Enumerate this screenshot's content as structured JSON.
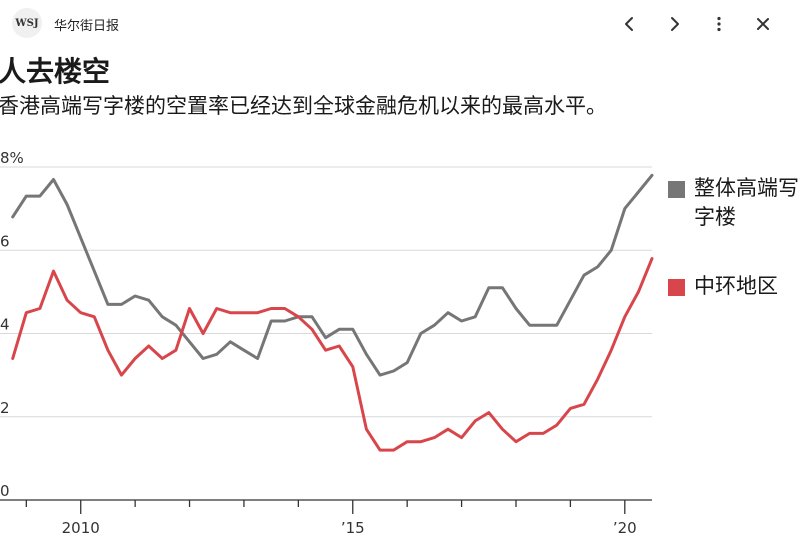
{
  "app": {
    "logo_text": "WSJ",
    "title": "华尔街日报"
  },
  "toolbar_icons": [
    "chevron-left-icon",
    "chevron-right-icon",
    "more-vertical-icon",
    "close-icon"
  ],
  "headline": "人去楼空",
  "subhead": "香港高端写字楼的空置率已经达到全球金融危机以来的最高水平。",
  "chart_data": {
    "type": "line",
    "y_ticks": [
      {
        "value": 0,
        "label": "0"
      },
      {
        "value": 2,
        "label": "2"
      },
      {
        "value": 4,
        "label": "4"
      },
      {
        "value": 6,
        "label": "6"
      },
      {
        "value": 8,
        "label": "8%"
      }
    ],
    "x_ticks": [
      {
        "value": 2010,
        "label": "2010"
      },
      {
        "value": 2015,
        "label": "’15"
      },
      {
        "value": 2020,
        "label": "’20"
      }
    ],
    "xlim": [
      2008.7,
      2020.5
    ],
    "ylim": [
      0,
      8
    ],
    "grid": true,
    "legend_placement": "right",
    "x": [
      2008.75,
      2009.0,
      2009.25,
      2009.5,
      2009.75,
      2010.0,
      2010.25,
      2010.5,
      2010.75,
      2011.0,
      2011.25,
      2011.5,
      2011.75,
      2012.0,
      2012.25,
      2012.5,
      2012.75,
      2013.0,
      2013.25,
      2013.5,
      2013.75,
      2014.0,
      2014.25,
      2014.5,
      2014.75,
      2015.0,
      2015.25,
      2015.5,
      2015.75,
      2016.0,
      2016.25,
      2016.5,
      2016.75,
      2017.0,
      2017.25,
      2017.5,
      2017.75,
      2018.0,
      2018.25,
      2018.5,
      2018.75,
      2019.0,
      2019.25,
      2019.5,
      2019.75,
      2020.0,
      2020.25,
      2020.5
    ],
    "series": [
      {
        "name": "整体高端写字楼",
        "color": "#767676",
        "values": [
          6.8,
          7.3,
          7.3,
          7.7,
          7.1,
          6.3,
          5.5,
          4.7,
          4.7,
          4.9,
          4.8,
          4.4,
          4.2,
          3.8,
          3.4,
          3.5,
          3.8,
          3.6,
          3.4,
          4.3,
          4.3,
          4.4,
          4.4,
          3.9,
          4.1,
          4.1,
          3.5,
          3.0,
          3.1,
          3.3,
          4.0,
          4.2,
          4.5,
          4.3,
          4.4,
          5.1,
          5.1,
          4.6,
          4.2,
          4.2,
          4.2,
          4.8,
          5.4,
          5.6,
          6.0,
          7.0,
          7.4,
          7.8
        ]
      },
      {
        "name": "中环地区",
        "color": "#d8464c",
        "values": [
          3.4,
          4.5,
          4.6,
          5.5,
          4.8,
          4.5,
          4.4,
          3.6,
          3.0,
          3.4,
          3.7,
          3.4,
          3.6,
          4.6,
          4.0,
          4.6,
          4.5,
          4.5,
          4.5,
          4.6,
          4.6,
          4.4,
          4.1,
          3.6,
          3.7,
          3.2,
          1.7,
          1.2,
          1.2,
          1.4,
          1.4,
          1.5,
          1.7,
          1.5,
          1.9,
          2.1,
          1.7,
          1.4,
          1.6,
          1.6,
          1.8,
          2.2,
          2.3,
          2.9,
          3.6,
          4.4,
          5.0,
          5.8
        ]
      }
    ]
  }
}
